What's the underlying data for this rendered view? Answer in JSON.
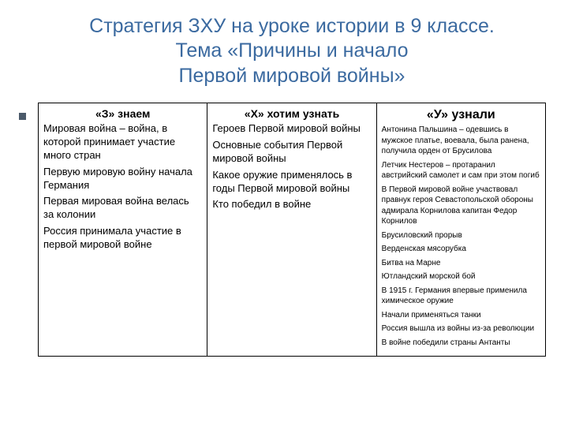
{
  "title_line1": "Стратегия ЗХУ на уроке истории в 9 классе.",
  "title_line2": "Тема «Причины и начало",
  "title_line3": "Первой мировой войны»",
  "table": {
    "columns": [
      {
        "head": "«З» знаем",
        "head_fontsize": 14,
        "items": [
          "Мировая война – война, в которой принимает участие много стран",
          "Первую мировую войну начала Германия",
          "Первая мировая война велась за колонии",
          "Россия принимала участие в первой мировой войне"
        ],
        "body_fontsize": 13
      },
      {
        "head": "«Х» хотим узнать",
        "head_fontsize": 14,
        "items": [
          "Героев Первой мировой войны",
          "Основные события Первой мировой войны",
          "Какое оружие применялось в годы Первой мировой войны",
          "Кто победил в войне"
        ],
        "body_fontsize": 13
      },
      {
        "head": "«У» узнали",
        "head_fontsize": 16,
        "items": [
          "Антонина Пальшина – одевшись в мужское платье, воевала, была ранена, получила орден от Брусилова",
          "Летчик Нестеров – протаранил австрийский самолет и сам при этом погиб",
          "В Первой мировой войне участвовал правнук героя Севастопольской обороны адмирала Корнилова капитан Федор Корнилов",
          "Брусиловский прорыв",
          "Верденская мясорубка",
          "Битва на Марне",
          "Ютландский морской бой",
          "В 1915 г. Германия впервые применила химическое оружие",
          "Начали применяться танки",
          "Россия вышла из войны из-за революции",
          "В войне победили страны Антанты"
        ],
        "body_fontsize": 10
      }
    ],
    "border_color": "#000000",
    "ncols": 3
  },
  "colors": {
    "title": "#3b6aa0",
    "bullet": "#4b5a6a",
    "text": "#000000",
    "background": "#ffffff"
  }
}
